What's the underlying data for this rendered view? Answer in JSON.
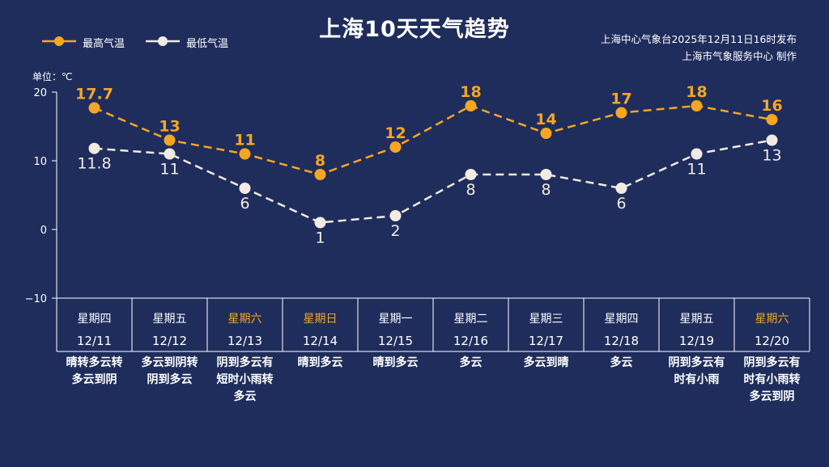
{
  "title": "上海10天天气趋势",
  "source": {
    "line1": "上海中心气象台2025年12月11日16时发布",
    "line2": "上海市气象服务中心 制作"
  },
  "unit_label": "单位：℃",
  "colors": {
    "background": "#1f2d5c",
    "high": "#f5a623",
    "low": "#f2ebe3",
    "weekend": "#f5a623"
  },
  "chart_data": {
    "type": "line",
    "title": "上海10天天气趋势",
    "ylabel": "单位：℃",
    "ylim": [
      -10,
      20
    ],
    "yticks": [
      "20",
      "10",
      "0",
      "−10"
    ],
    "grid": false,
    "legend": "top-left",
    "categories": [
      "12/11",
      "12/12",
      "12/13",
      "12/14",
      "12/15",
      "12/16",
      "12/17",
      "12/18",
      "12/19",
      "12/20"
    ],
    "series": [
      {
        "name": "最高气温",
        "values": [
          17.7,
          13,
          11,
          8,
          12,
          18,
          14,
          17,
          18,
          16
        ],
        "labels": [
          "17.7",
          "13",
          "11",
          "8",
          "12",
          "18",
          "14",
          "17",
          "18",
          "16"
        ]
      },
      {
        "name": "最低气温",
        "values": [
          11.8,
          11,
          6,
          1,
          2,
          8,
          8,
          6,
          11,
          13
        ],
        "labels": [
          "11.8",
          "11",
          "6",
          "1",
          "2",
          "8",
          "8",
          "6",
          "11",
          "13"
        ]
      }
    ]
  },
  "days": [
    {
      "weekday": "星期四",
      "date": "12/11",
      "weather": [
        "晴转多云转",
        "多云到阴"
      ],
      "weekend": false
    },
    {
      "weekday": "星期五",
      "date": "12/12",
      "weather": [
        "多云到阴转",
        "阴到多云"
      ],
      "weekend": false
    },
    {
      "weekday": "星期六",
      "date": "12/13",
      "weather": [
        "阴到多云有",
        "短时小雨转",
        "多云"
      ],
      "weekend": true
    },
    {
      "weekday": "星期日",
      "date": "12/14",
      "weather": [
        "晴到多云"
      ],
      "weekend": true
    },
    {
      "weekday": "星期一",
      "date": "12/15",
      "weather": [
        "晴到多云"
      ],
      "weekend": false
    },
    {
      "weekday": "星期二",
      "date": "12/16",
      "weather": [
        "多云"
      ],
      "weekend": false
    },
    {
      "weekday": "星期三",
      "date": "12/17",
      "weather": [
        "多云到晴"
      ],
      "weekend": false
    },
    {
      "weekday": "星期四",
      "date": "12/18",
      "weather": [
        "多云"
      ],
      "weekend": false
    },
    {
      "weekday": "星期五",
      "date": "12/19",
      "weather": [
        "阴到多云有",
        "时有小雨"
      ],
      "weekend": false
    },
    {
      "weekday": "星期六",
      "date": "12/20",
      "weather": [
        "阴到多云有",
        "时有小雨转",
        "多云到阴"
      ],
      "weekend": true
    }
  ]
}
